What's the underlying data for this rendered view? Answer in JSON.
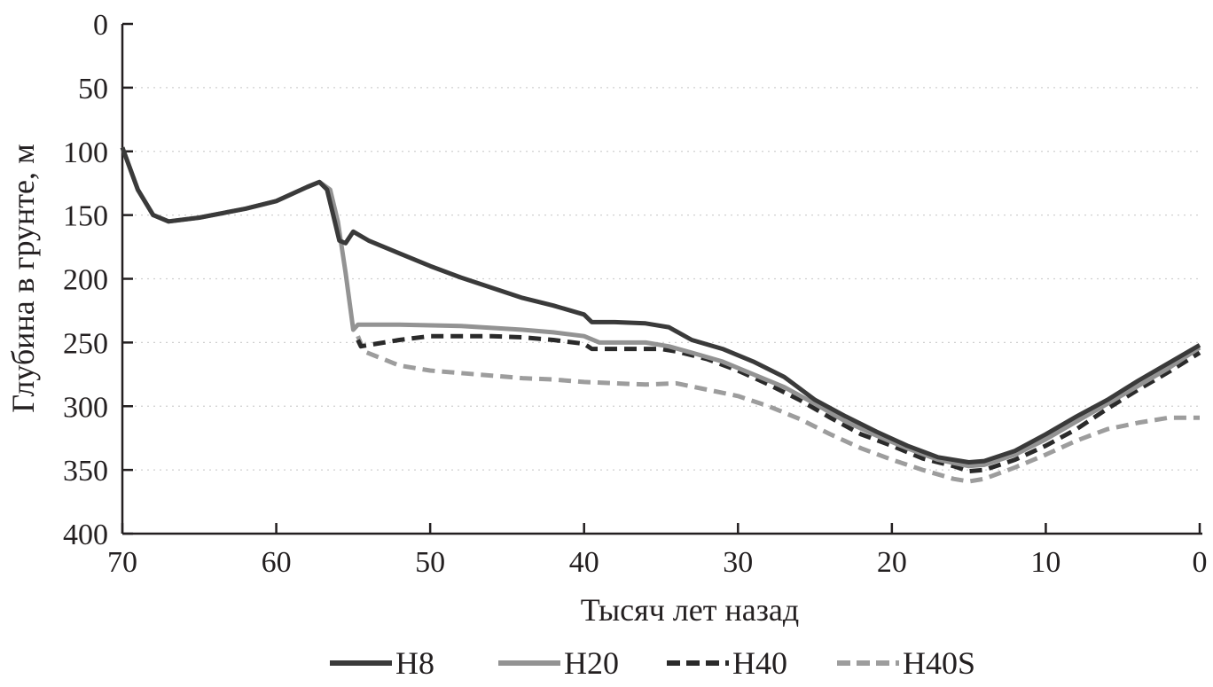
{
  "chart_data": {
    "type": "line",
    "xlabel": "Тысяч лет назад",
    "ylabel": "Глубина в грунте, м",
    "xlim": [
      70,
      0
    ],
    "ylim": [
      0,
      400
    ],
    "x_reversed": true,
    "y_inverted": true,
    "x_ticks": [
      70,
      60,
      50,
      40,
      30,
      20,
      10,
      0
    ],
    "y_ticks": [
      0,
      50,
      100,
      150,
      200,
      250,
      300,
      350,
      400
    ],
    "grid": "horizontal dotted",
    "legend_position": "bottom",
    "series": [
      {
        "name": "H8",
        "color": "#3a3a3a",
        "dash": "solid",
        "points": [
          [
            70,
            97
          ],
          [
            69,
            130
          ],
          [
            68,
            150
          ],
          [
            67,
            155
          ],
          [
            65,
            152
          ],
          [
            62,
            145
          ],
          [
            60,
            139
          ],
          [
            58,
            128
          ],
          [
            57.2,
            124
          ],
          [
            56.7,
            130
          ],
          [
            56.3,
            150
          ],
          [
            55.9,
            170
          ],
          [
            55.5,
            172
          ],
          [
            55,
            163
          ],
          [
            54,
            170
          ],
          [
            52,
            180
          ],
          [
            50,
            190
          ],
          [
            48,
            199
          ],
          [
            46,
            207
          ],
          [
            44,
            215
          ],
          [
            42,
            221
          ],
          [
            40,
            228
          ],
          [
            39.5,
            234
          ],
          [
            38,
            234
          ],
          [
            36,
            235
          ],
          [
            34.5,
            238
          ],
          [
            33,
            248
          ],
          [
            31,
            255
          ],
          [
            29,
            265
          ],
          [
            27,
            277
          ],
          [
            25,
            295
          ],
          [
            23,
            308
          ],
          [
            21,
            320
          ],
          [
            19,
            331
          ],
          [
            17,
            340
          ],
          [
            15,
            344
          ],
          [
            14,
            343
          ],
          [
            12,
            335
          ],
          [
            10,
            322
          ],
          [
            8,
            308
          ],
          [
            6,
            295
          ],
          [
            4,
            280
          ],
          [
            2,
            266
          ],
          [
            0,
            252
          ]
        ]
      },
      {
        "name": "H20",
        "color": "#939393",
        "dash": "solid",
        "points": [
          [
            70,
            97
          ],
          [
            69,
            130
          ],
          [
            68,
            150
          ],
          [
            67,
            155
          ],
          [
            65,
            152
          ],
          [
            62,
            145
          ],
          [
            60,
            139
          ],
          [
            58,
            128
          ],
          [
            57.2,
            124
          ],
          [
            56.5,
            130
          ],
          [
            56,
            155
          ],
          [
            55.5,
            195
          ],
          [
            55,
            240
          ],
          [
            54.7,
            236
          ],
          [
            52,
            236
          ],
          [
            48,
            237
          ],
          [
            44,
            240
          ],
          [
            42,
            242
          ],
          [
            40,
            245
          ],
          [
            39,
            250
          ],
          [
            36,
            250
          ],
          [
            34.5,
            253
          ],
          [
            33,
            258
          ],
          [
            31,
            265
          ],
          [
            29,
            275
          ],
          [
            27,
            285
          ],
          [
            25,
            298
          ],
          [
            23,
            312
          ],
          [
            21,
            323
          ],
          [
            19,
            333
          ],
          [
            17,
            342
          ],
          [
            15,
            347
          ],
          [
            14,
            346
          ],
          [
            12,
            338
          ],
          [
            10,
            326
          ],
          [
            8,
            312
          ],
          [
            6,
            298
          ],
          [
            4,
            284
          ],
          [
            2,
            270
          ],
          [
            0,
            254
          ]
        ]
      },
      {
        "name": "H40",
        "color": "#2a2a2a",
        "dash": "14 8",
        "points": [
          [
            54.7,
            248
          ],
          [
            54.5,
            253
          ],
          [
            52,
            248
          ],
          [
            50,
            245
          ],
          [
            48,
            245
          ],
          [
            46,
            245
          ],
          [
            44,
            246
          ],
          [
            42,
            248
          ],
          [
            40,
            251
          ],
          [
            39.5,
            255
          ],
          [
            35,
            255
          ],
          [
            34,
            257
          ],
          [
            32,
            263
          ],
          [
            30,
            272
          ],
          [
            28,
            283
          ],
          [
            26,
            295
          ],
          [
            24,
            309
          ],
          [
            22,
            322
          ],
          [
            20,
            331
          ],
          [
            18,
            341
          ],
          [
            16,
            347
          ],
          [
            15,
            351
          ],
          [
            14,
            350
          ],
          [
            12,
            342
          ],
          [
            10,
            331
          ],
          [
            8,
            318
          ],
          [
            6,
            302
          ],
          [
            4,
            287
          ],
          [
            2,
            273
          ],
          [
            0,
            258
          ]
        ]
      },
      {
        "name": "H40S",
        "color": "#9d9d9d",
        "dash": "14 8",
        "points": [
          [
            54.7,
            245
          ],
          [
            54.3,
            257
          ],
          [
            52,
            268
          ],
          [
            50,
            272
          ],
          [
            48,
            274
          ],
          [
            46,
            276
          ],
          [
            44,
            278
          ],
          [
            42,
            279
          ],
          [
            40,
            281
          ],
          [
            38,
            282
          ],
          [
            36,
            283
          ],
          [
            34,
            282
          ],
          [
            32,
            287
          ],
          [
            30,
            292
          ],
          [
            28,
            300
          ],
          [
            26,
            310
          ],
          [
            24,
            322
          ],
          [
            22,
            333
          ],
          [
            20,
            342
          ],
          [
            18,
            350
          ],
          [
            16,
            357
          ],
          [
            15,
            359
          ],
          [
            14,
            357
          ],
          [
            12,
            348
          ],
          [
            10,
            338
          ],
          [
            8,
            327
          ],
          [
            6,
            318
          ],
          [
            4,
            313
          ],
          [
            2,
            309
          ],
          [
            0,
            309
          ]
        ]
      }
    ]
  }
}
